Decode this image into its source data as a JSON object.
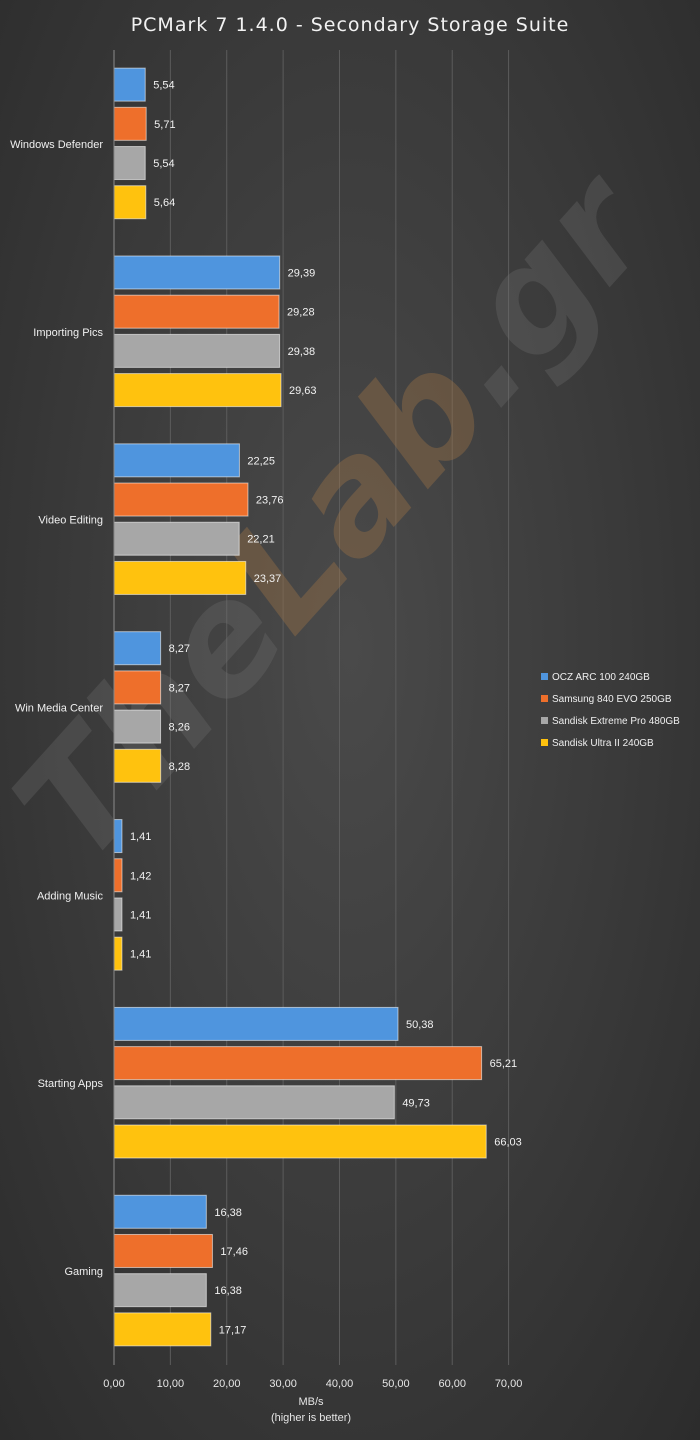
{
  "chart_data": {
    "type": "bar",
    "orientation": "horizontal",
    "title": "PCMark  7 1.4.0 - Secondary  Storage  Suite",
    "xlabel": "MB/s",
    "xlabel_sub": "(higher is better)",
    "xlim": [
      0,
      70
    ],
    "xticks": [
      "0,00",
      "10,00",
      "20,00",
      "30,00",
      "40,00",
      "50,00",
      "60,00",
      "70,00"
    ],
    "grid": true,
    "legend_position": "right",
    "categories": [
      "Windows Defender",
      "Importing Pics",
      "Video Editing",
      "Win Media Center",
      "Adding Music",
      "Starting Apps",
      "Gaming"
    ],
    "series": [
      {
        "name": "OCZ ARC 100 240GB",
        "color": "#4f95de",
        "values": [
          5.54,
          29.39,
          22.25,
          8.27,
          1.41,
          50.38,
          16.38
        ],
        "labels": [
          "5,54",
          "29,39",
          "22,25",
          "8,27",
          "1,41",
          "50,38",
          "16,38"
        ]
      },
      {
        "name": "Samsung 840 EVO 250GB",
        "color": "#ee6f2b",
        "values": [
          5.71,
          29.28,
          23.76,
          8.27,
          1.42,
          65.21,
          17.46
        ],
        "labels": [
          "5,71",
          "29,28",
          "23,76",
          "8,27",
          "1,42",
          "65,21",
          "17,46"
        ]
      },
      {
        "name": "Sandisk Extreme Pro 480GB",
        "color": "#a7a7a7",
        "values": [
          5.54,
          29.38,
          22.21,
          8.26,
          1.41,
          49.73,
          16.38
        ],
        "labels": [
          "5,54",
          "29,38",
          "22,21",
          "8,26",
          "1,41",
          "49,73",
          "16,38"
        ]
      },
      {
        "name": "Sandisk Ultra II 240GB",
        "color": "#ffc20e",
        "values": [
          5.64,
          29.63,
          23.37,
          8.28,
          1.41,
          66.03,
          17.17
        ],
        "labels": [
          "5,64",
          "29,63",
          "23,37",
          "8,28",
          "1,41",
          "66,03",
          "17,17"
        ]
      }
    ]
  },
  "watermark": {
    "part1": "The",
    "part2": "Lab",
    "part3": ".gr"
  }
}
